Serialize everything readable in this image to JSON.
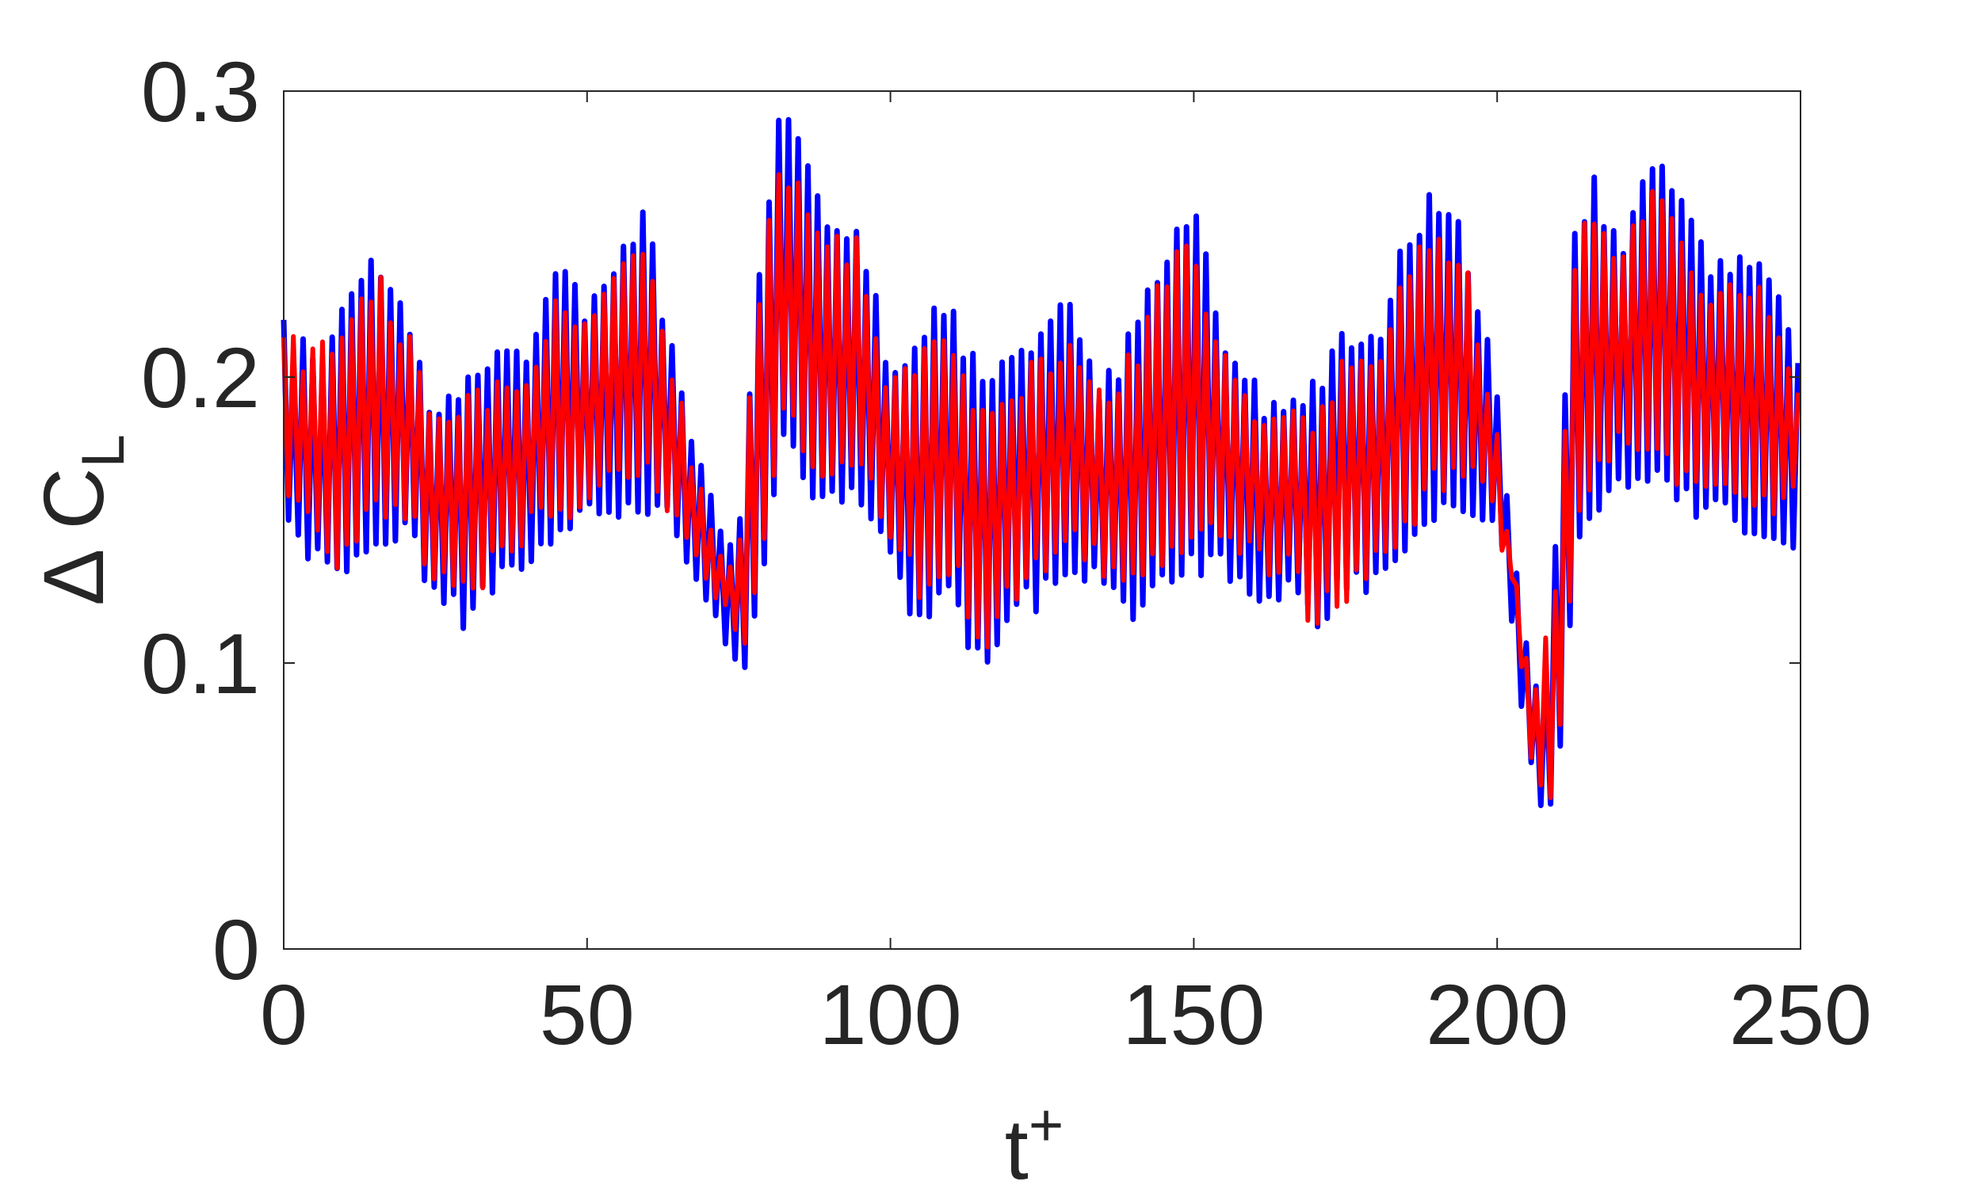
{
  "chart_data": {
    "type": "line",
    "xlabel": "t",
    "xlabel_sup": "+",
    "ylabel": "Δ C",
    "ylabel_sub": "L",
    "xlim": [
      0,
      250
    ],
    "ylim": [
      0,
      0.3
    ],
    "x_ticks": [
      0,
      50,
      100,
      150,
      200,
      250
    ],
    "x_tick_labels": [
      "0",
      "50",
      "100",
      "150",
      "200",
      "250"
    ],
    "y_ticks": [
      0,
      0.1,
      0.2,
      0.3
    ],
    "y_tick_labels": [
      "0",
      "0.1",
      "0.2",
      "0.3"
    ],
    "grid": false,
    "legend": "none",
    "series": [
      {
        "color": "#0000ff",
        "envelope_x": [
          0,
          5,
          10,
          15,
          20,
          25,
          30,
          35,
          40,
          45,
          50,
          55,
          60,
          65,
          70,
          75,
          78,
          82,
          86,
          90,
          95,
          100,
          105,
          110,
          115,
          120,
          125,
          130,
          135,
          140,
          145,
          150,
          155,
          160,
          165,
          170,
          175,
          180,
          185,
          190,
          195,
          200,
          203,
          206,
          208,
          210,
          213,
          216,
          220,
          225,
          230,
          235,
          240,
          245,
          250
        ],
        "envelope_upper": [
          0.22,
          0.21,
          0.23,
          0.25,
          0.23,
          0.19,
          0.2,
          0.21,
          0.21,
          0.24,
          0.23,
          0.25,
          0.26,
          0.2,
          0.16,
          0.15,
          0.24,
          0.3,
          0.28,
          0.26,
          0.26,
          0.2,
          0.22,
          0.23,
          0.2,
          0.21,
          0.22,
          0.23,
          0.2,
          0.22,
          0.25,
          0.26,
          0.22,
          0.2,
          0.19,
          0.2,
          0.22,
          0.22,
          0.25,
          0.27,
          0.25,
          0.2,
          0.14,
          0.1,
          0.11,
          0.15,
          0.26,
          0.27,
          0.25,
          0.28,
          0.27,
          0.24,
          0.25,
          0.24,
          0.21
        ],
        "envelope_lower": [
          0.14,
          0.13,
          0.12,
          0.14,
          0.14,
          0.12,
          0.11,
          0.12,
          0.13,
          0.14,
          0.15,
          0.15,
          0.15,
          0.14,
          0.11,
          0.09,
          0.11,
          0.17,
          0.16,
          0.15,
          0.15,
          0.13,
          0.11,
          0.12,
          0.09,
          0.11,
          0.12,
          0.13,
          0.12,
          0.11,
          0.12,
          0.13,
          0.13,
          0.12,
          0.12,
          0.11,
          0.12,
          0.12,
          0.13,
          0.15,
          0.15,
          0.14,
          0.1,
          0.05,
          0.035,
          0.05,
          0.13,
          0.15,
          0.16,
          0.16,
          0.15,
          0.15,
          0.14,
          0.14,
          0.14
        ]
      },
      {
        "color": "#ff0000",
        "envelope_x": [
          0,
          5,
          10,
          15,
          20,
          25,
          30,
          35,
          40,
          45,
          50,
          55,
          60,
          65,
          70,
          75,
          78,
          82,
          86,
          90,
          95,
          100,
          105,
          110,
          115,
          120,
          125,
          130,
          135,
          140,
          145,
          150,
          155,
          160,
          165,
          170,
          175,
          180,
          185,
          190,
          195,
          200,
          203,
          206,
          208,
          210,
          213,
          216,
          220,
          225,
          230,
          235,
          240,
          245,
          250
        ],
        "envelope_upper": [
          0.22,
          0.21,
          0.22,
          0.24,
          0.22,
          0.19,
          0.2,
          0.2,
          0.2,
          0.23,
          0.22,
          0.24,
          0.25,
          0.2,
          0.15,
          0.14,
          0.23,
          0.28,
          0.27,
          0.25,
          0.25,
          0.2,
          0.21,
          0.22,
          0.19,
          0.2,
          0.21,
          0.22,
          0.2,
          0.21,
          0.24,
          0.25,
          0.21,
          0.19,
          0.19,
          0.19,
          0.21,
          0.21,
          0.24,
          0.26,
          0.24,
          0.19,
          0.13,
          0.1,
          0.11,
          0.14,
          0.25,
          0.26,
          0.24,
          0.27,
          0.26,
          0.23,
          0.24,
          0.23,
          0.2
        ],
        "envelope_lower": [
          0.15,
          0.14,
          0.13,
          0.15,
          0.15,
          0.12,
          0.12,
          0.13,
          0.14,
          0.15,
          0.15,
          0.16,
          0.16,
          0.14,
          0.12,
          0.1,
          0.12,
          0.18,
          0.17,
          0.16,
          0.16,
          0.14,
          0.12,
          0.13,
          0.1,
          0.12,
          0.13,
          0.14,
          0.13,
          0.12,
          0.13,
          0.14,
          0.14,
          0.13,
          0.13,
          0.11,
          0.12,
          0.13,
          0.14,
          0.16,
          0.16,
          0.15,
          0.11,
          0.06,
          0.045,
          0.06,
          0.14,
          0.16,
          0.17,
          0.17,
          0.16,
          0.16,
          0.15,
          0.15,
          0.15
        ]
      }
    ]
  }
}
